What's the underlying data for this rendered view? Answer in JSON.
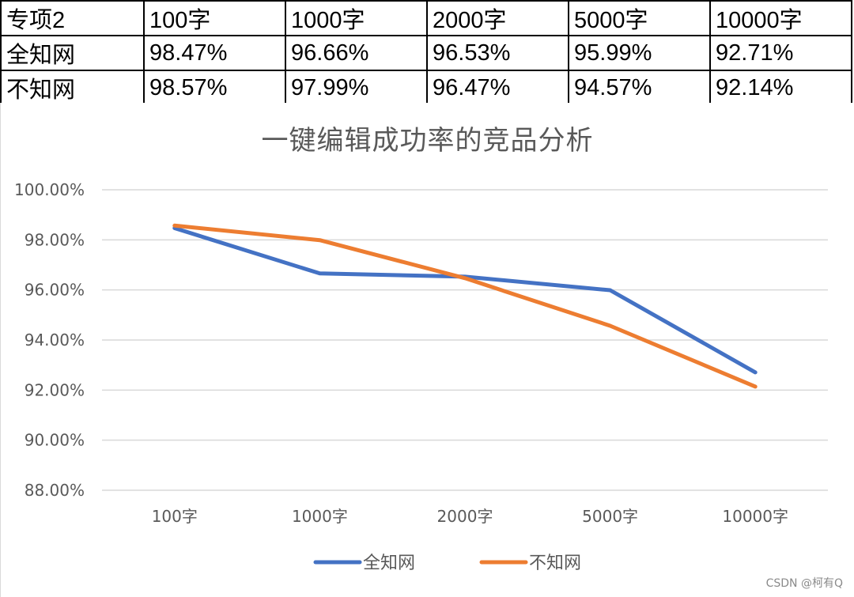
{
  "table": {
    "header": [
      "专项2",
      "100字",
      "1000字",
      "2000字",
      "5000字",
      "10000字"
    ],
    "rows": [
      [
        "全知网",
        "98.47%",
        "96.66%",
        "96.53%",
        "95.99%",
        "92.71%"
      ],
      [
        "不知网",
        "98.57%",
        "97.99%",
        "96.47%",
        "94.57%",
        "92.14%"
      ]
    ]
  },
  "chart_data": {
    "type": "line",
    "title": "一键编辑成功率的竞品分析",
    "categories": [
      "100字",
      "1000字",
      "2000字",
      "5000字",
      "10000字"
    ],
    "series": [
      {
        "name": "全知网",
        "values": [
          98.47,
          96.66,
          96.53,
          95.99,
          92.71
        ],
        "color": "#4472C4"
      },
      {
        "name": "不知网",
        "values": [
          98.57,
          97.99,
          96.47,
          94.57,
          92.14
        ],
        "color": "#ED7D31"
      }
    ],
    "ylim": [
      88,
      100
    ],
    "yticks": [
      "100.00%",
      "98.00%",
      "96.00%",
      "94.00%",
      "92.00%",
      "90.00%",
      "88.00%"
    ],
    "ytick_values": [
      100,
      98,
      96,
      94,
      92,
      90,
      88
    ],
    "grid": true,
    "legend": "bottom",
    "xlabel": "",
    "ylabel": ""
  },
  "gridline_color": "#d9d9d9",
  "watermark": "CSDN @柯有Q"
}
